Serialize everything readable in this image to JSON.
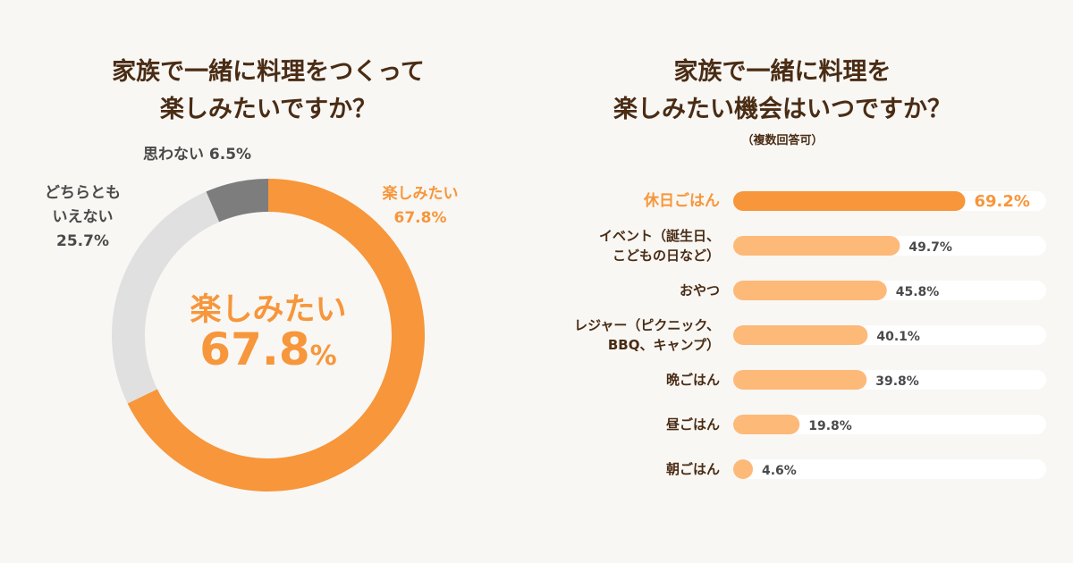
{
  "left": {
    "title_line1": "家族で一緒に料理をつくって",
    "title_line2": "楽しみたいですか？",
    "center_name": "楽しみたい",
    "center_value": "67.8",
    "center_unit": "%"
  },
  "right": {
    "title_line1": "家族で一緒に料理を",
    "title_line2": "楽しみたい機会はいつですか？",
    "subtitle": "（複数回答可）"
  },
  "colors": {
    "orange": "#f7963a",
    "light_orange": "#fdb978",
    "gray_light": "#e0e0e0",
    "gray_dark": "#7d7d7d",
    "track": "#ffffff"
  },
  "chart_data": [
    {
      "type": "pie",
      "title": "家族で一緒に料理をつくって楽しみたいですか？",
      "slices": [
        {
          "label_lines": [
            "楽しみたい"
          ],
          "value": 67.8,
          "value_text": "67.8%"
        },
        {
          "label_lines": [
            "どちらとも",
            "いえない"
          ],
          "value": 25.7,
          "value_text": "25.7%"
        },
        {
          "label_lines": [
            "思わない"
          ],
          "value": 6.5,
          "value_text": "6.5%"
        }
      ]
    },
    {
      "type": "bar",
      "orientation": "horizontal",
      "title": "家族で一緒に料理を楽しみたい機会はいつですか？",
      "xlim": [
        0,
        100
      ],
      "categories": [
        {
          "lines": [
            "休日ごはん"
          ],
          "value": 69.2,
          "value_text": "69.2%",
          "highlight": true
        },
        {
          "lines": [
            "イベント（誕生日、",
            "こどもの日など）"
          ],
          "value": 49.7,
          "value_text": "49.7%",
          "highlight": false
        },
        {
          "lines": [
            "おやつ"
          ],
          "value": 45.8,
          "value_text": "45.8%",
          "highlight": false
        },
        {
          "lines": [
            "レジャー（ピクニック、",
            "BBQ、キャンプ）"
          ],
          "value": 40.1,
          "value_text": "40.1%",
          "highlight": false
        },
        {
          "lines": [
            "晩ごはん"
          ],
          "value": 39.8,
          "value_text": "39.8%",
          "highlight": false
        },
        {
          "lines": [
            "昼ごはん"
          ],
          "value": 19.8,
          "value_text": "19.8%",
          "highlight": false
        },
        {
          "lines": [
            "朝ごはん"
          ],
          "value": 4.6,
          "value_text": "4.6%",
          "highlight": false
        }
      ]
    }
  ]
}
